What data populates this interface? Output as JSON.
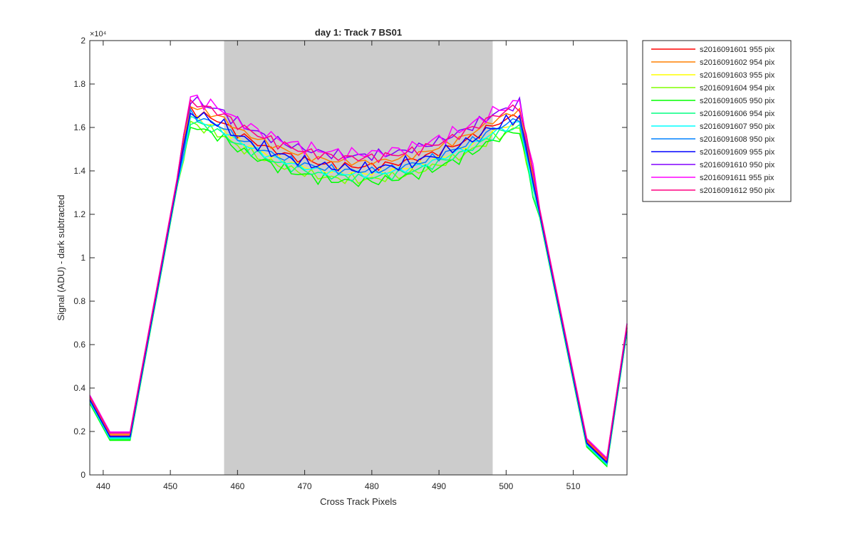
{
  "chart_data": {
    "type": "line",
    "title": "day 1: Track 7  BS01",
    "xlabel": "Cross Track Pixels",
    "ylabel": "Signal (ADU) - dark subtracted",
    "y_exponent_label": "×10⁴",
    "xlim": [
      438,
      518
    ],
    "ylim": [
      0,
      20000
    ],
    "x_ticks": [
      440,
      450,
      460,
      470,
      480,
      490,
      500,
      510
    ],
    "x_tick_labels": [
      "440",
      "450",
      "460",
      "470",
      "480",
      "490",
      "500",
      "510"
    ],
    "y_ticks": [
      0,
      2000,
      4000,
      6000,
      8000,
      10000,
      12000,
      14000,
      16000,
      18000,
      20000
    ],
    "y_tick_labels": [
      "0",
      "0.2",
      "0.4",
      "0.6",
      "0.8",
      "1",
      "1.2",
      "1.4",
      "1.6",
      "1.8",
      "2"
    ],
    "shaded_region": {
      "x0": 458,
      "x1": 498,
      "color": "#cccccc"
    },
    "legend_position": "outside-top-right",
    "series": [
      {
        "name": "s2016091601 955 pix",
        "color": "#ff0000",
        "dy": 0,
        "amp": 0.6
      },
      {
        "name": "s2016091602 954 pix",
        "color": "#ff8000",
        "dy": 200,
        "amp": 0.5
      },
      {
        "name": "s2016091603 955 pix",
        "color": "#ffff00",
        "dy": -300,
        "amp": 0.6
      },
      {
        "name": "s2016091604 954 pix",
        "color": "#80ff00",
        "dy": -600,
        "amp": 0.7
      },
      {
        "name": "s2016091605 950 pix",
        "color": "#00ff00",
        "dy": -700,
        "amp": 0.8
      },
      {
        "name": "s2016091606 954 pix",
        "color": "#00ff80",
        "dy": -500,
        "amp": 0.6
      },
      {
        "name": "s2016091607 950 pix",
        "color": "#00ffff",
        "dy": -350,
        "amp": 0.5
      },
      {
        "name": "s2016091608 950 pix",
        "color": "#0080ff",
        "dy": -200,
        "amp": 0.6
      },
      {
        "name": "s2016091609 955 pix",
        "color": "#0000ff",
        "dy": -100,
        "amp": 0.9
      },
      {
        "name": "s2016091610 950 pix",
        "color": "#8000ff",
        "dy": 500,
        "amp": 0.7
      },
      {
        "name": "s2016091611 955 pix",
        "color": "#ff00ff",
        "dy": 600,
        "amp": 0.9
      },
      {
        "name": "s2016091612 950 pix",
        "color": "#ff0080",
        "dy": 400,
        "amp": 0.7
      }
    ]
  }
}
